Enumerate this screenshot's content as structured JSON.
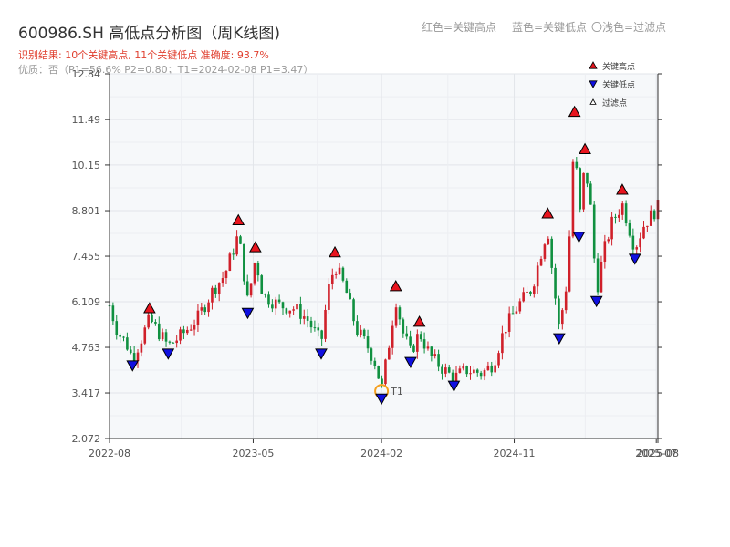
{
  "header": {
    "title": "600986.SH 高低点分析图（周K线图)",
    "result_text": "识别结果: 10个关键高点, 11个关键低点  准确度: 93.7%",
    "info_text": "优质：否（P1=56.6%  P2=0.80；T1=2024-02-08 P1=3.47）",
    "legend_red": "红色=关键高点",
    "legend_blue": "蓝色=关键低点",
    "legend_light": "〇浅色=过滤点"
  },
  "colors": {
    "up": "#d0202a",
    "down": "#109040",
    "high_marker": "#e8141e",
    "low_marker": "#1010e0",
    "t1_ring": "#f5a020",
    "plot_bg": "#f6f8fa"
  },
  "chart_data": {
    "type": "candlestick",
    "title": "600986.SH 高低点分析图（周K线图)",
    "ylim": [
      2.072,
      12.84
    ],
    "y_ticks": [
      "2.072",
      "3.417",
      "4.763",
      "6.109",
      "7.455",
      "8.801",
      "10.15",
      "11.49",
      "12.84"
    ],
    "x_tick_labels": [
      "2022-08",
      "2023-05",
      "2024-02",
      "2024-11",
      "2025-07",
      "2025-08"
    ],
    "x_tick_positions": [
      0.0,
      0.262,
      0.496,
      0.738,
      0.997,
      1.0
    ],
    "grid": true,
    "legend": {
      "placement": "top-right",
      "entries": [
        "关键高点",
        "关键低点",
        "过滤点"
      ]
    },
    "key_highs": [
      {
        "x": 0.073,
        "value": 5.7
      },
      {
        "x": 0.235,
        "value": 8.3
      },
      {
        "x": 0.266,
        "value": 7.5
      },
      {
        "x": 0.411,
        "value": 7.35
      },
      {
        "x": 0.522,
        "value": 6.35
      },
      {
        "x": 0.565,
        "value": 5.3
      },
      {
        "x": 0.799,
        "value": 8.5
      },
      {
        "x": 0.848,
        "value": 11.5
      },
      {
        "x": 0.867,
        "value": 10.4
      },
      {
        "x": 0.935,
        "value": 9.2
      }
    ],
    "key_lows": [
      {
        "x": 0.042,
        "value": 4.45
      },
      {
        "x": 0.107,
        "value": 4.8
      },
      {
        "x": 0.252,
        "value": 6.0
      },
      {
        "x": 0.386,
        "value": 4.8
      },
      {
        "x": 0.496,
        "value": 3.47
      },
      {
        "x": 0.549,
        "value": 4.55
      },
      {
        "x": 0.628,
        "value": 3.85
      },
      {
        "x": 0.82,
        "value": 5.25
      },
      {
        "x": 0.856,
        "value": 8.25
      },
      {
        "x": 0.888,
        "value": 6.35
      },
      {
        "x": 0.958,
        "value": 7.6
      }
    ],
    "t1": {
      "label": "T1",
      "x": 0.496,
      "value": 3.47
    },
    "price_path": [
      [
        0.0,
        6.0
      ],
      [
        0.015,
        5.2
      ],
      [
        0.03,
        4.9
      ],
      [
        0.042,
        4.45
      ],
      [
        0.055,
        4.9
      ],
      [
        0.073,
        5.6
      ],
      [
        0.09,
        5.2
      ],
      [
        0.107,
        4.8
      ],
      [
        0.13,
        5.1
      ],
      [
        0.16,
        5.6
      ],
      [
        0.19,
        6.5
      ],
      [
        0.21,
        6.9
      ],
      [
        0.235,
        8.1
      ],
      [
        0.252,
        6.1
      ],
      [
        0.266,
        7.4
      ],
      [
        0.28,
        6.3
      ],
      [
        0.31,
        6.0
      ],
      [
        0.34,
        5.9
      ],
      [
        0.36,
        5.6
      ],
      [
        0.386,
        4.9
      ],
      [
        0.398,
        6.4
      ],
      [
        0.411,
        7.2
      ],
      [
        0.43,
        6.5
      ],
      [
        0.45,
        5.3
      ],
      [
        0.47,
        4.8
      ],
      [
        0.485,
        4.3
      ],
      [
        0.496,
        3.5
      ],
      [
        0.51,
        4.9
      ],
      [
        0.522,
        6.2
      ],
      [
        0.535,
        5.2
      ],
      [
        0.549,
        4.6
      ],
      [
        0.565,
        5.2
      ],
      [
        0.585,
        4.5
      ],
      [
        0.61,
        4.1
      ],
      [
        0.628,
        3.85
      ],
      [
        0.65,
        4.1
      ],
      [
        0.68,
        4.0
      ],
      [
        0.7,
        4.3
      ],
      [
        0.72,
        5.3
      ],
      [
        0.745,
        6.0
      ],
      [
        0.77,
        6.5
      ],
      [
        0.799,
        8.3
      ],
      [
        0.81,
        6.6
      ],
      [
        0.82,
        5.3
      ],
      [
        0.835,
        6.8
      ],
      [
        0.848,
        11.2
      ],
      [
        0.856,
        8.4
      ],
      [
        0.867,
        10.2
      ],
      [
        0.878,
        8.8
      ],
      [
        0.888,
        6.4
      ],
      [
        0.9,
        7.5
      ],
      [
        0.915,
        8.4
      ],
      [
        0.935,
        9.0
      ],
      [
        0.958,
        7.7
      ],
      [
        0.975,
        8.4
      ],
      [
        1.0,
        8.9
      ]
    ]
  }
}
